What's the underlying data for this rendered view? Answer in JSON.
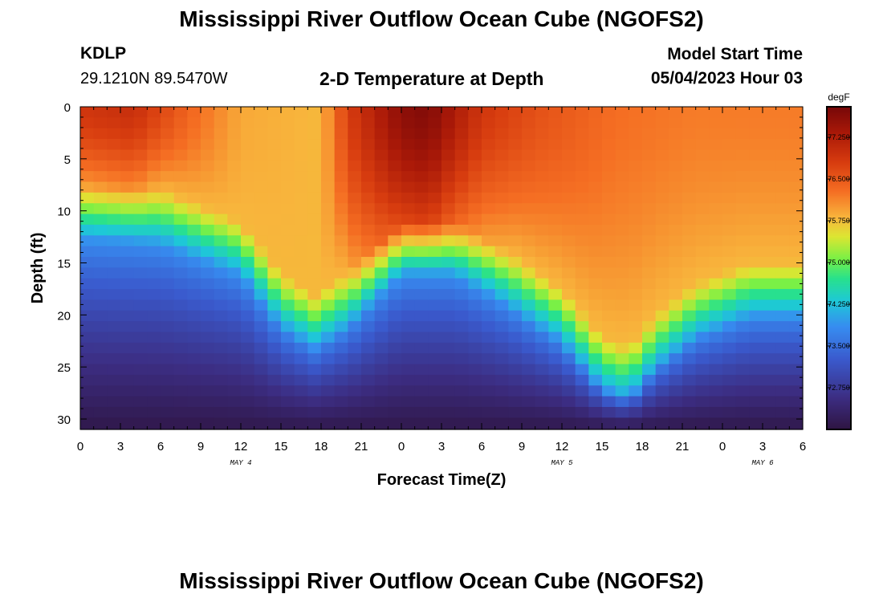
{
  "header": {
    "title": "Mississippi River Outflow Ocean Cube (NGOFS2)",
    "station_id": "KDLP",
    "station_coords": "29.1210N  89.5470W",
    "plot_title": "2-D Temperature at Depth",
    "model_start_label": "Model Start Time",
    "model_start_value": "05/04/2023 Hour 03"
  },
  "footer": {
    "title": "Mississippi River Outflow Ocean Cube (NGOFS2)"
  },
  "chart_data": {
    "type": "heatmap",
    "title": "2-D Temperature at Depth",
    "xlabel": "Forecast Time(Z)",
    "ylabel": "Depth (ft)",
    "x_unit": "hours from May 4 00Z",
    "xlim": [
      0,
      54
    ],
    "ylim": [
      0,
      31
    ],
    "x_ticks": [
      {
        "v": 0,
        "label": "0"
      },
      {
        "v": 3,
        "label": "3"
      },
      {
        "v": 6,
        "label": "6"
      },
      {
        "v": 9,
        "label": "9"
      },
      {
        "v": 12,
        "label": "12"
      },
      {
        "v": 15,
        "label": "15"
      },
      {
        "v": 18,
        "label": "18"
      },
      {
        "v": 21,
        "label": "21"
      },
      {
        "v": 24,
        "label": "0"
      },
      {
        "v": 27,
        "label": "3"
      },
      {
        "v": 30,
        "label": "6"
      },
      {
        "v": 33,
        "label": "9"
      },
      {
        "v": 36,
        "label": "12"
      },
      {
        "v": 39,
        "label": "15"
      },
      {
        "v": 42,
        "label": "18"
      },
      {
        "v": 45,
        "label": "21"
      },
      {
        "v": 48,
        "label": "0"
      },
      {
        "v": 51,
        "label": "3"
      },
      {
        "v": 54,
        "label": "6"
      }
    ],
    "y_ticks": [
      0,
      5,
      10,
      15,
      20,
      25,
      30
    ],
    "date_labels": [
      {
        "v": 12,
        "label": "MAY 4"
      },
      {
        "v": 36,
        "label": "MAY 5"
      },
      {
        "v": 51,
        "label": "MAY 6"
      }
    ],
    "colorbar": {
      "unit": "degF",
      "min": 72.0,
      "max": 77.8,
      "ticks": [
        72.75,
        73.5,
        74.25,
        75.0,
        75.75,
        76.5,
        77.25
      ],
      "tick_labels": [
        "72.750",
        "73.500",
        "74.250",
        "75.000",
        "75.750",
        "76.500",
        "77.250"
      ]
    },
    "grid_resolution": {
      "hours_step": 1,
      "depth_step_ft": 1.03
    },
    "description_model": {
      "thermocline_depth_ft": [
        [
          0,
          9.5
        ],
        [
          6,
          10
        ],
        [
          12,
          13
        ],
        [
          15,
          18
        ],
        [
          17.5,
          20
        ],
        [
          20,
          18
        ],
        [
          24,
          13
        ],
        [
          28,
          13
        ],
        [
          32,
          16
        ],
        [
          36,
          19.5
        ],
        [
          39,
          24
        ],
        [
          41,
          25
        ],
        [
          43,
          22
        ],
        [
          46,
          19
        ],
        [
          50,
          17
        ],
        [
          54,
          17
        ]
      ],
      "surface_temperature_degF": [
        [
          0,
          76.9
        ],
        [
          4,
          77.0
        ],
        [
          8,
          76.4
        ],
        [
          12,
          75.9
        ],
        [
          18,
          75.8
        ],
        [
          20,
          76.8
        ],
        [
          24,
          77.6
        ],
        [
          26,
          77.7
        ],
        [
          30,
          76.9
        ],
        [
          34,
          76.6
        ],
        [
          40,
          76.3
        ],
        [
          46,
          76.2
        ],
        [
          54,
          76.2
        ]
      ],
      "layer_temperature_degF": {
        "upper_mixed_layer_min": 75.8,
        "deep_layer_top": 74.0,
        "deep_layer_bottom": 72.1
      }
    }
  }
}
